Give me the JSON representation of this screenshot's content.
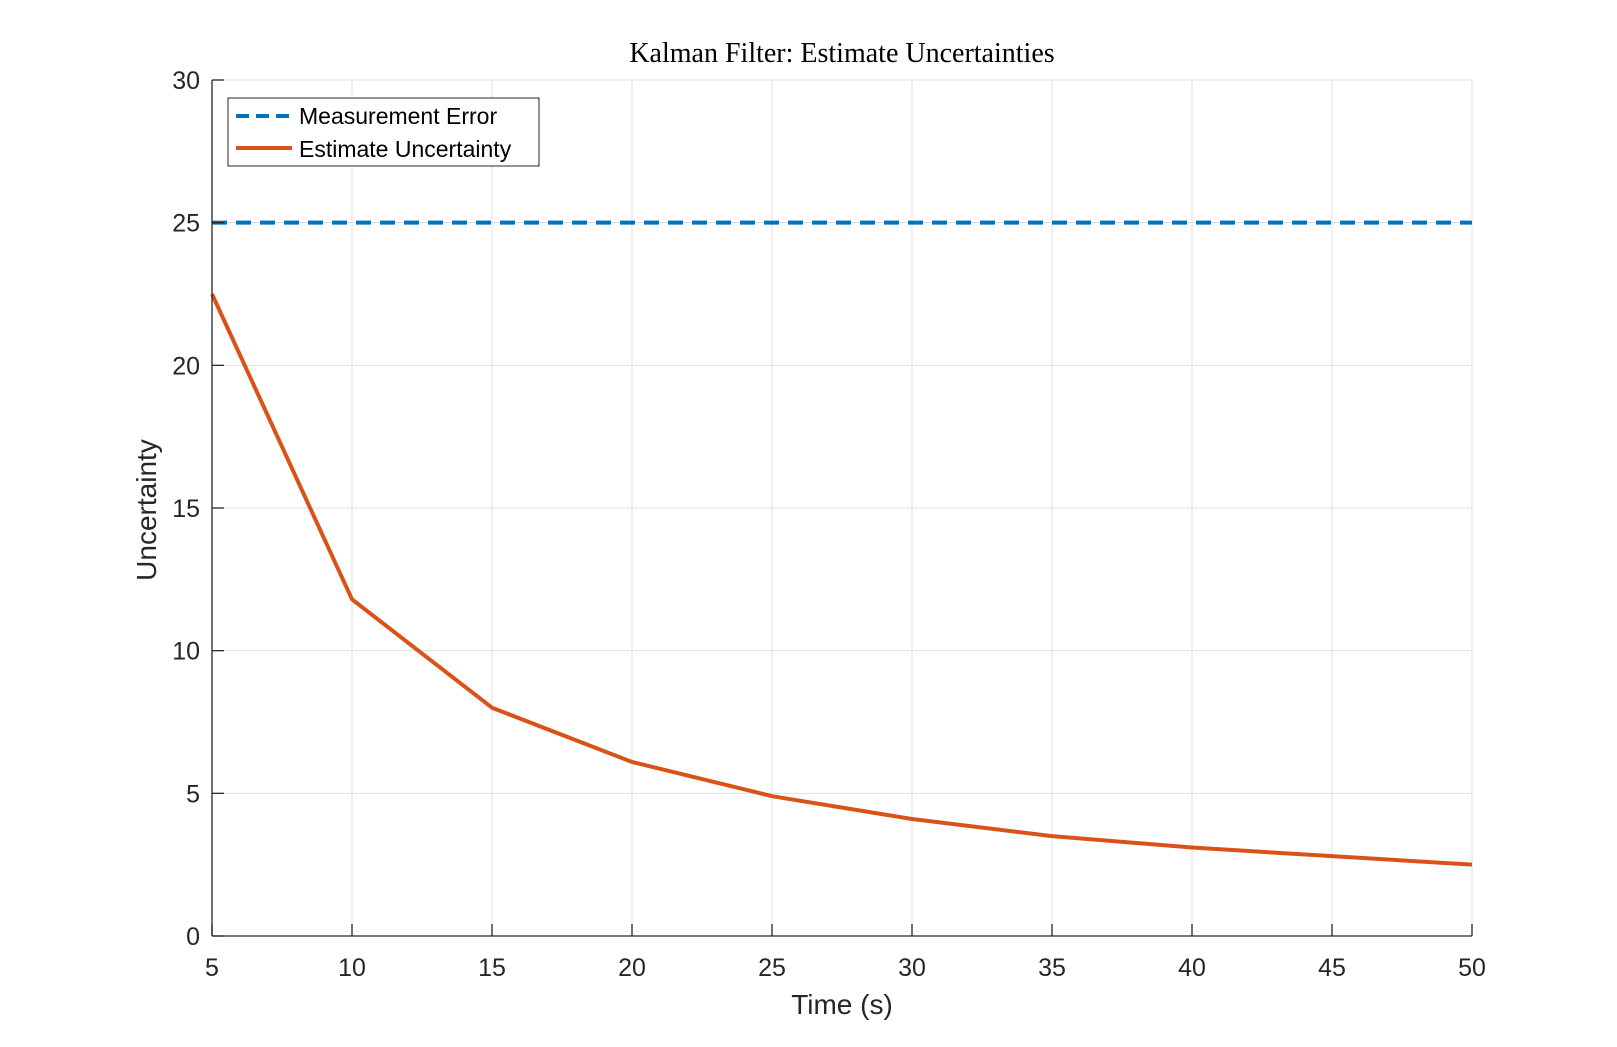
{
  "chart_data": {
    "type": "line",
    "title": "Kalman Filter: Estimate Uncertainties",
    "xlabel": "Time (s)",
    "ylabel": "Uncertainty",
    "xlim": [
      5,
      50
    ],
    "ylim": [
      0,
      30
    ],
    "xticks": [
      5,
      10,
      15,
      20,
      25,
      30,
      35,
      40,
      45,
      50
    ],
    "yticks": [
      0,
      5,
      10,
      15,
      20,
      25,
      30
    ],
    "grid": true,
    "legend_position": "top-left",
    "series": [
      {
        "name": "Measurement Error",
        "style": "dashed",
        "color": "#0072BD",
        "x": [
          5,
          10,
          15,
          20,
          25,
          30,
          35,
          40,
          45,
          50
        ],
        "y": [
          25,
          25,
          25,
          25,
          25,
          25,
          25,
          25,
          25,
          25
        ]
      },
      {
        "name": "Estimate Uncertainty",
        "style": "solid",
        "color": "#D95319",
        "x": [
          5,
          10,
          15,
          20,
          25,
          30,
          35,
          40,
          45,
          50
        ],
        "y": [
          22.5,
          11.8,
          8.0,
          6.1,
          4.9,
          4.1,
          3.5,
          3.1,
          2.8,
          2.5
        ]
      }
    ]
  }
}
